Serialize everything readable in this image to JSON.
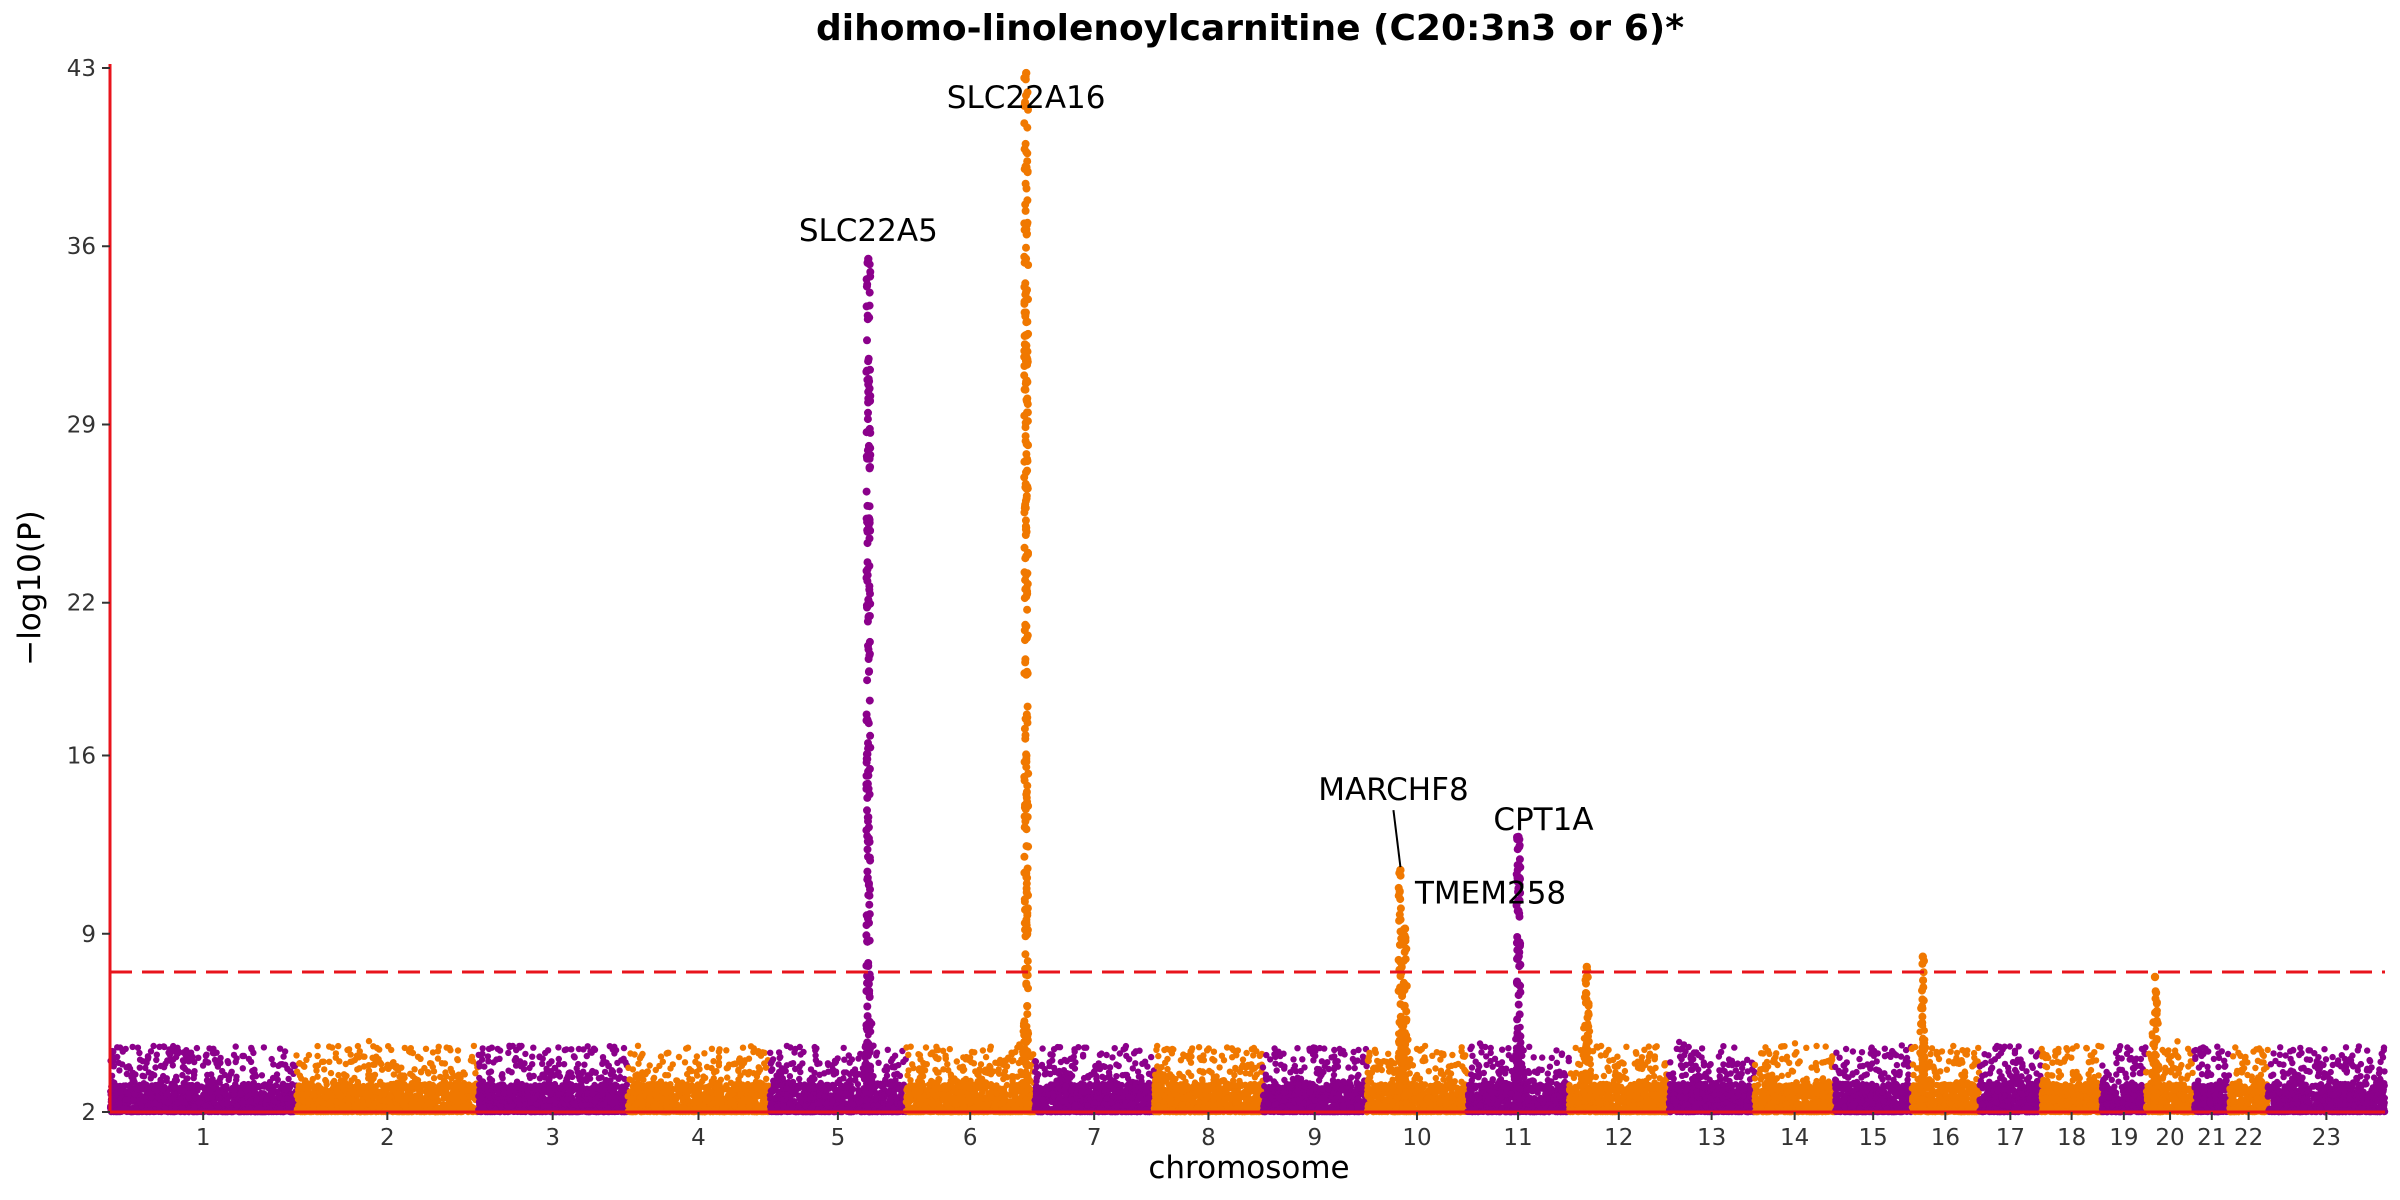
{
  "chart_data": {
    "type": "scatter",
    "subtype": "manhattan",
    "title": "dihomo-linolenoylcarnitine (C20:3n3 or 6)*",
    "xlabel": "chromosome",
    "ylabel": "−log10(P)",
    "ylim": [
      2,
      43
    ],
    "yticks": [
      2,
      9,
      16,
      22,
      29,
      36,
      43
    ],
    "significance_threshold": 7.5,
    "colors": {
      "odd": "#8b008b",
      "even": "#f07800",
      "threshold": "#e8141c",
      "axis": "#e8141c"
    },
    "chromosomes": [
      {
        "label": "1",
        "len": 248
      },
      {
        "label": "2",
        "len": 242
      },
      {
        "label": "3",
        "len": 198
      },
      {
        "label": "4",
        "len": 190
      },
      {
        "label": "5",
        "len": 181
      },
      {
        "label": "6",
        "len": 171
      },
      {
        "label": "7",
        "len": 159
      },
      {
        "label": "8",
        "len": 145
      },
      {
        "label": "9",
        "len": 138
      },
      {
        "label": "10",
        "len": 134
      },
      {
        "label": "11",
        "len": 135
      },
      {
        "label": "12",
        "len": 133
      },
      {
        "label": "13",
        "len": 114
      },
      {
        "label": "14",
        "len": 107
      },
      {
        "label": "15",
        "len": 102
      },
      {
        "label": "16",
        "len": 90
      },
      {
        "label": "17",
        "len": 83
      },
      {
        "label": "18",
        "len": 80
      },
      {
        "label": "19",
        "len": 59
      },
      {
        "label": "20",
        "len": 64
      },
      {
        "label": "21",
        "len": 47
      },
      {
        "label": "22",
        "len": 51
      },
      {
        "label": "23",
        "len": 156
      }
    ],
    "peaks": [
      {
        "chr": "5",
        "pos": 131,
        "max": 35.5,
        "gene": "SLC22A5"
      },
      {
        "chr": "6",
        "pos": 160,
        "max": 42.8,
        "second": 32.5,
        "gene": "SLC22A16"
      },
      {
        "chr": "10",
        "pos": 45,
        "max": 11.5,
        "gene": "MARCHF8"
      },
      {
        "chr": "10",
        "pos": 51,
        "max": 9.2,
        "gene": "TMEM258"
      },
      {
        "chr": "11",
        "pos": 68,
        "max": 12.8,
        "second": 10.3,
        "gene": "CPT1A"
      },
      {
        "chr": "12",
        "pos": 24,
        "max": 7.7
      },
      {
        "chr": "16",
        "pos": 15,
        "max": 8.1
      },
      {
        "chr": "20",
        "pos": 12,
        "max": 7.3
      }
    ]
  }
}
